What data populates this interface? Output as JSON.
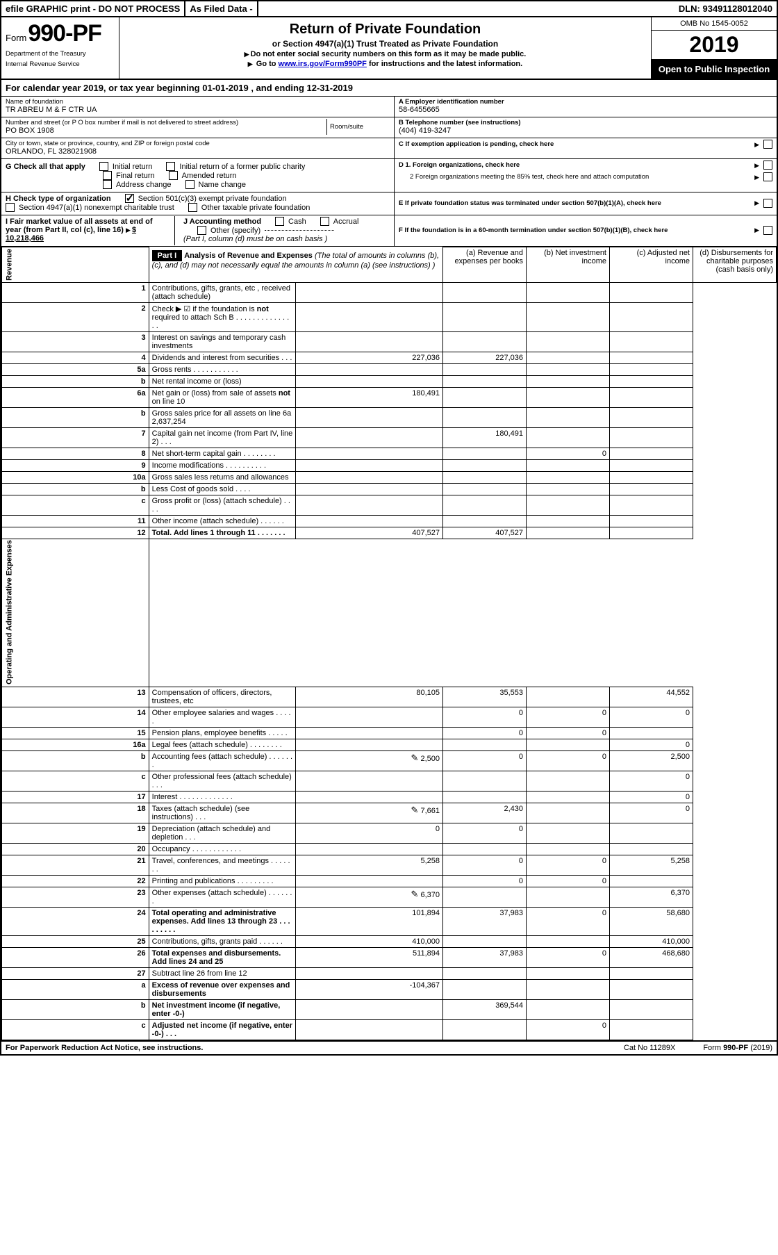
{
  "topbar": {
    "efile": "efile GRAPHIC print - DO NOT PROCESS",
    "asfiled": "As Filed Data -",
    "dln": "DLN: 93491128012040"
  },
  "header": {
    "form_prefix": "Form",
    "form_number": "990-PF",
    "dept": "Department of the Treasury",
    "irs": "Internal Revenue Service",
    "title": "Return of Private Foundation",
    "subtitle": "or Section 4947(a)(1) Trust Treated as Private Foundation",
    "note1": "Do not enter social security numbers on this form as it may be made public.",
    "note2_pre": "Go to ",
    "note2_link": "www.irs.gov/Form990PF",
    "note2_post": " for instructions and the latest information.",
    "omb": "OMB No 1545-0052",
    "year": "2019",
    "open": "Open to Public Inspection"
  },
  "calyr": "For calendar year 2019, or tax year beginning 01-01-2019           , and ending 12-31-2019",
  "info": {
    "name_lbl": "Name of foundation",
    "name": "TR ABREU M & F CTR UA",
    "addr_lbl": "Number and street (or P O  box number if mail is not delivered to street address)",
    "room_lbl": "Room/suite",
    "addr": "PO BOX 1908",
    "city_lbl": "City or town, state or province, country, and ZIP or foreign postal code",
    "city": "ORLANDO, FL  328021908",
    "A_lbl": "A Employer identification number",
    "A": "58-6455665",
    "B_lbl": "B Telephone number (see instructions)",
    "B": "(404) 419-3247",
    "C": "C  If exemption application is pending, check here",
    "D1": "D 1. Foreign organizations, check here",
    "D2": "2  Foreign organizations meeting the 85% test, check here and attach computation",
    "E": "E  If private foundation status was terminated under section 507(b)(1)(A), check here",
    "F": "F  If the foundation is in a 60-month termination under section 507(b)(1)(B), check here"
  },
  "G": {
    "label": "G Check all that apply",
    "opts": [
      "Initial return",
      "Initial return of a former public charity",
      "Final return",
      "Amended return",
      "Address change",
      "Name change"
    ]
  },
  "H": {
    "label": "H Check type of organization",
    "opt1": "Section 501(c)(3) exempt private foundation",
    "opt2": "Section 4947(a)(1) nonexempt charitable trust",
    "opt3": "Other taxable private foundation"
  },
  "I": {
    "text1": "I Fair market value of all assets at end of year (from Part II, col  (c), line 16)",
    "amt": "$  10,218,466"
  },
  "J": {
    "label": "J Accounting method",
    "cash": "Cash",
    "accrual": "Accrual",
    "other": "Other (specify)",
    "note": "(Part I, column (d) must be on cash basis )"
  },
  "part1": {
    "title": "Part I",
    "heading": "Analysis of Revenue and Expenses",
    "heading_note": "(The total of amounts in columns (b), (c), and (d) may not necessarily equal the amounts in column (a) (see instructions) )",
    "cols": {
      "a": "(a)   Revenue and expenses per books",
      "b": "(b)   Net investment income",
      "c": "(c)   Adjusted net income",
      "d": "(d)   Disbursements for charitable purposes (cash basis only)"
    },
    "side_rev": "Revenue",
    "side_exp": "Operating and Administrative Expenses",
    "rows": [
      {
        "n": "1",
        "d": "Contributions, gifts, grants, etc , received (attach schedule)",
        "a": "",
        "b": "",
        "c": "",
        "dd": ""
      },
      {
        "n": "2",
        "d": "Check ▶ ☑ if the foundation is not required to attach Sch  B      .  .  .  .  .  .  .  .  .  .  .  .  .  .  .",
        "a": "",
        "b": "",
        "c": "",
        "dd": ""
      },
      {
        "n": "3",
        "d": "Interest on savings and temporary cash investments",
        "a": "",
        "b": "",
        "c": "",
        "dd": ""
      },
      {
        "n": "4",
        "d": "Dividends and interest from securities    .   .   .",
        "a": "227,036",
        "b": "227,036",
        "c": "",
        "dd": ""
      },
      {
        "n": "5a",
        "d": "Gross rents     .   .   .   .   .   .   .   .   .   .   .",
        "a": "",
        "b": "",
        "c": "",
        "dd": ""
      },
      {
        "n": "b",
        "d": "Net rental income or (loss)  ",
        "a": "",
        "b": "",
        "c": "",
        "dd": ""
      },
      {
        "n": "6a",
        "d": "Net gain or (loss) from sale of assets not on line 10",
        "a": "180,491",
        "b": "",
        "c": "",
        "dd": ""
      },
      {
        "n": "b",
        "d": "Gross sales price for all assets on line 6a\n2,637,254",
        "a": "",
        "b": "",
        "c": "",
        "dd": ""
      },
      {
        "n": "7",
        "d": "Capital gain net income (from Part IV, line 2)    .   .   .",
        "a": "",
        "b": "180,491",
        "c": "",
        "dd": ""
      },
      {
        "n": "8",
        "d": "Net short-term capital gain   .   .   .   .   .   .   .   .",
        "a": "",
        "b": "",
        "c": "0",
        "dd": ""
      },
      {
        "n": "9",
        "d": "Income modifications  .   .   .   .   .   .   .   .   .   .",
        "a": "",
        "b": "",
        "c": "",
        "dd": ""
      },
      {
        "n": "10a",
        "d": "Gross sales less returns and allowances",
        "a": "",
        "b": "",
        "c": "",
        "dd": ""
      },
      {
        "n": "b",
        "d": "Less  Cost of goods sold     .   .   .   .",
        "a": "",
        "b": "",
        "c": "",
        "dd": ""
      },
      {
        "n": "c",
        "d": "Gross profit or (loss) (attach schedule)    .   .   .   .",
        "a": "",
        "b": "",
        "c": "",
        "dd": ""
      },
      {
        "n": "11",
        "d": "Other income (attach schedule)     .   .   .   .   .   .",
        "a": "",
        "b": "",
        "c": "",
        "dd": ""
      },
      {
        "n": "12",
        "d": "Total. Add lines 1 through 11   .   .   .   .   .   .   .",
        "a": "407,527",
        "b": "407,527",
        "c": "",
        "dd": "",
        "bold": true
      },
      {
        "n": "13",
        "d": "Compensation of officers, directors, trustees, etc",
        "a": "80,105",
        "b": "35,553",
        "c": "",
        "dd": "44,552"
      },
      {
        "n": "14",
        "d": "Other employee salaries and wages    .   .   .   .   .",
        "a": "",
        "b": "0",
        "c": "0",
        "dd": "0"
      },
      {
        "n": "15",
        "d": "Pension plans, employee benefits    .   .   .   .   .",
        "a": "",
        "b": "0",
        "c": "0",
        "dd": ""
      },
      {
        "n": "16a",
        "d": "Legal fees (attach schedule) .   .   .   .   .   .   .   .",
        "a": "",
        "b": "",
        "c": "",
        "dd": "0"
      },
      {
        "n": "b",
        "d": "Accounting fees (attach schedule) .   .   .   .   .   .   .",
        "a": "2,500",
        "b": "0",
        "c": "0",
        "dd": "2,500",
        "icon": true
      },
      {
        "n": "c",
        "d": "Other professional fees (attach schedule)    .   .   .",
        "a": "",
        "b": "",
        "c": "",
        "dd": "0"
      },
      {
        "n": "17",
        "d": "Interest  .   .   .   .   .   .   .   .   .   .   .   .   .",
        "a": "",
        "b": "",
        "c": "",
        "dd": "0"
      },
      {
        "n": "18",
        "d": "Taxes (attach schedule) (see instructions)    .   .   .",
        "a": "7,661",
        "b": "2,430",
        "c": "",
        "dd": "0",
        "icon": true
      },
      {
        "n": "19",
        "d": "Depreciation (attach schedule) and depletion    .   .   .",
        "a": "0",
        "b": "0",
        "c": "",
        "dd": ""
      },
      {
        "n": "20",
        "d": "Occupancy   .   .   .   .   .   .   .   .   .   .   .   .",
        "a": "",
        "b": "",
        "c": "",
        "dd": ""
      },
      {
        "n": "21",
        "d": "Travel, conferences, and meetings .   .   .   .   .   .   .",
        "a": "5,258",
        "b": "0",
        "c": "0",
        "dd": "5,258"
      },
      {
        "n": "22",
        "d": "Printing and publications .   .   .   .   .   .   .   .   .",
        "a": "",
        "b": "0",
        "c": "0",
        "dd": ""
      },
      {
        "n": "23",
        "d": "Other expenses (attach schedule)  .   .   .   .   .   .   .",
        "a": "6,370",
        "b": "",
        "c": "",
        "dd": "6,370",
        "icon": true
      },
      {
        "n": "24",
        "d": "Total operating and administrative expenses. Add lines 13 through 23   .   .   .   .   .   .   .   .   .",
        "a": "101,894",
        "b": "37,983",
        "c": "0",
        "dd": "58,680",
        "bold": true
      },
      {
        "n": "25",
        "d": "Contributions, gifts, grants paid     .   .   .   .   .   .",
        "a": "410,000",
        "b": "",
        "c": "",
        "dd": "410,000"
      },
      {
        "n": "26",
        "d": "Total expenses and disbursements. Add lines 24 and 25",
        "a": "511,894",
        "b": "37,983",
        "c": "0",
        "dd": "468,680",
        "bold": true
      },
      {
        "n": "27",
        "d": "Subtract line 26 from line 12",
        "a": "",
        "b": "",
        "c": "",
        "dd": ""
      },
      {
        "n": "a",
        "d": "Excess of revenue over expenses and disbursements",
        "a": "-104,367",
        "b": "",
        "c": "",
        "dd": "",
        "bold": true
      },
      {
        "n": "b",
        "d": "Net investment income (if negative, enter -0-)",
        "a": "",
        "b": "369,544",
        "c": "",
        "dd": "",
        "bold": true
      },
      {
        "n": "c",
        "d": "Adjusted net income (if negative, enter -0-)  .   .   .",
        "a": "",
        "b": "",
        "c": "0",
        "dd": "",
        "bold": true
      }
    ]
  },
  "footer": {
    "left": "For Paperwork Reduction Act Notice, see instructions.",
    "mid": "Cat  No  11289X",
    "right": "Form 990-PF (2019)"
  }
}
